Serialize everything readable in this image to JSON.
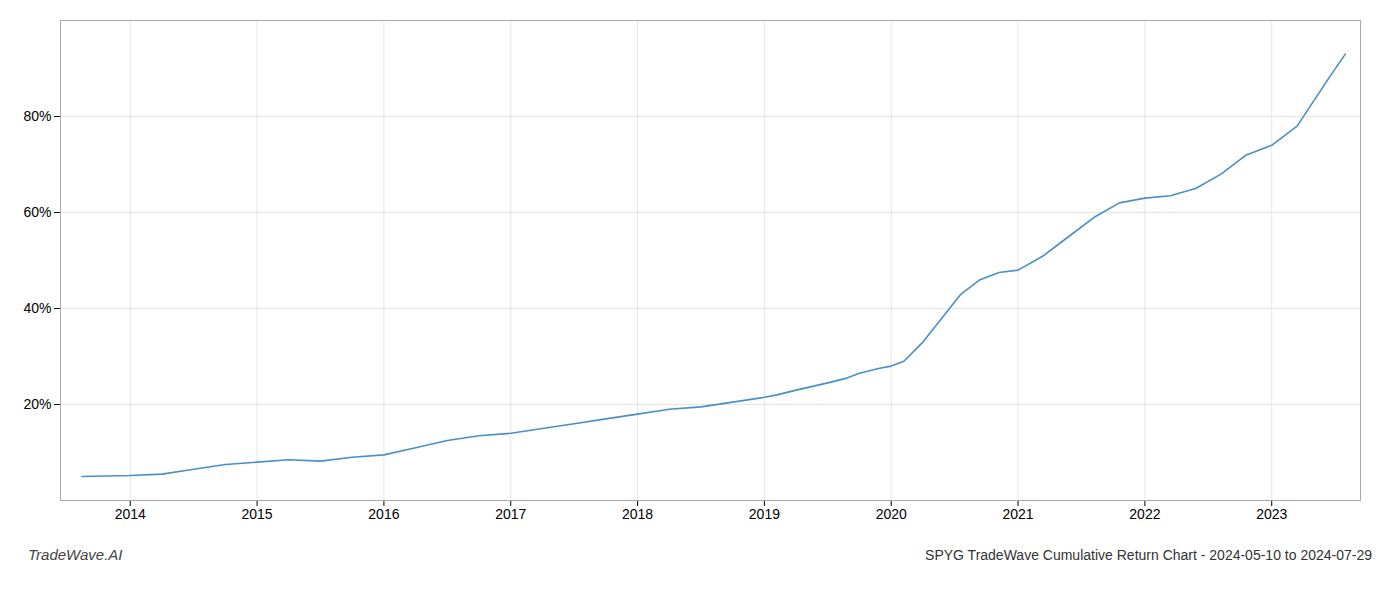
{
  "chart_data": {
    "type": "line",
    "title": "SPYG TradeWave Cumulative Return Chart - 2024-05-10 to 2024-07-29",
    "annotations": [
      {
        "text": "TradeWave.AI"
      }
    ],
    "x": [
      2013.62,
      2014.0,
      2014.25,
      2014.5,
      2014.75,
      2015.0,
      2015.25,
      2015.5,
      2015.75,
      2016.0,
      2016.25,
      2016.5,
      2016.75,
      2017.0,
      2017.25,
      2017.5,
      2017.75,
      2018.0,
      2018.25,
      2018.5,
      2018.75,
      2019.0,
      2019.1,
      2019.25,
      2019.5,
      2019.65,
      2019.75,
      2019.9,
      2020.0,
      2020.1,
      2020.25,
      2020.4,
      2020.55,
      2020.7,
      2020.85,
      2021.0,
      2021.2,
      2021.4,
      2021.6,
      2021.8,
      2022.0,
      2022.2,
      2022.4,
      2022.6,
      2022.8,
      2023.0,
      2023.2,
      2023.45,
      2023.58
    ],
    "values": [
      5,
      5.2,
      5.5,
      6.5,
      7.5,
      8.0,
      8.5,
      8.2,
      9.0,
      9.5,
      11.0,
      12.5,
      13.5,
      14.0,
      15.0,
      16.0,
      17.0,
      18.0,
      19.0,
      19.5,
      20.5,
      21.5,
      22.0,
      23.0,
      24.5,
      25.5,
      26.5,
      27.5,
      28.0,
      29.0,
      33.0,
      38.0,
      43.0,
      46.0,
      47.5,
      48.0,
      51.0,
      55.0,
      59.0,
      62.0,
      63.0,
      63.5,
      65.0,
      68.0,
      72.0,
      74.0,
      78.0,
      88.0,
      93.0
    ],
    "color": "#4a90c4",
    "xlim": [
      2013.45,
      2023.7
    ],
    "xticks": [
      2014,
      2015,
      2016,
      2017,
      2018,
      2019,
      2020,
      2021,
      2022,
      2023
    ],
    "ylim": [
      0,
      100
    ],
    "yticks": [
      {
        "value": 20,
        "label": "20%"
      },
      {
        "value": 40,
        "label": "40%"
      },
      {
        "value": 60,
        "label": "60%"
      },
      {
        "value": 80,
        "label": "80%"
      }
    ],
    "grid": true
  }
}
